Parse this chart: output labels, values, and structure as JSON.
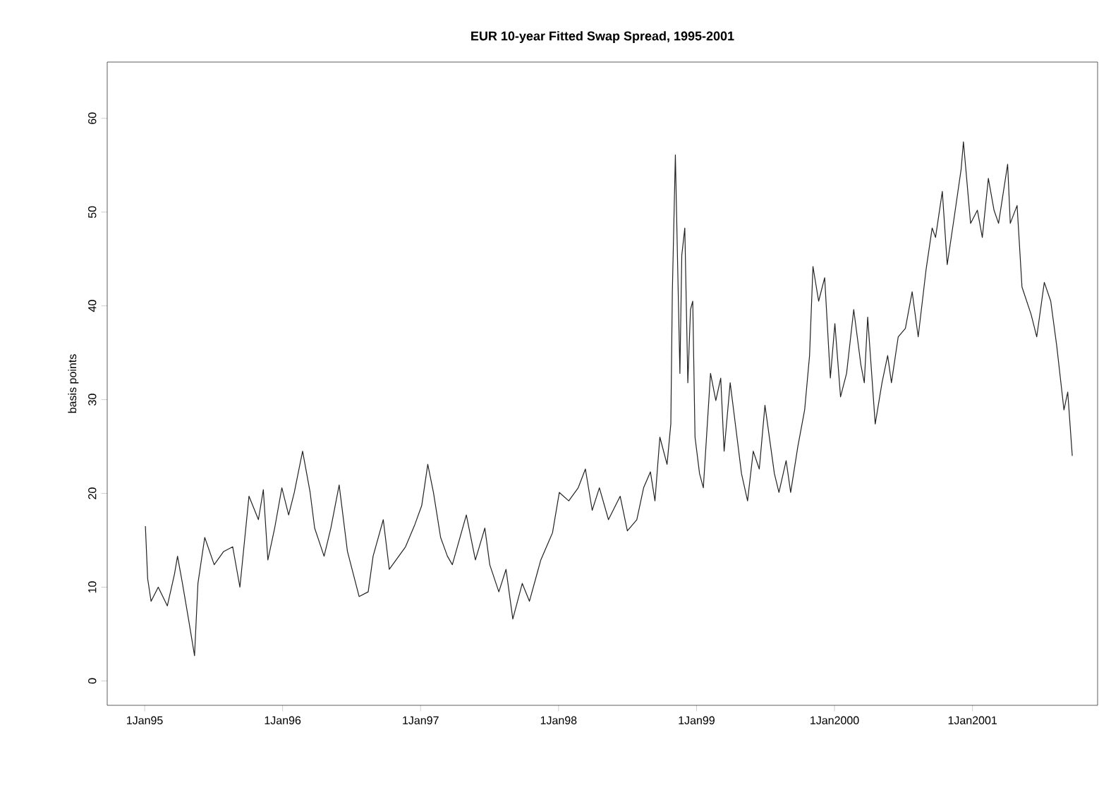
{
  "chart_data": {
    "type": "line",
    "title": "EUR 10-year Fitted Swap Spread, 1995-2001",
    "ylabel": "basis points",
    "xlim": [
      "1994-09-24",
      "2001-11-28"
    ],
    "ylim": [
      -2.6,
      66
    ],
    "xticks": [
      {
        "value": "1995-01-01",
        "label": "1Jan95"
      },
      {
        "value": "1996-01-01",
        "label": "1Jan96"
      },
      {
        "value": "1997-01-01",
        "label": "1Jan97"
      },
      {
        "value": "1998-01-01",
        "label": "1Jan98"
      },
      {
        "value": "1999-01-01",
        "label": "1Jan99"
      },
      {
        "value": "2000-01-01",
        "label": "1Jan2000"
      },
      {
        "value": "2001-01-01",
        "label": "1Jan2001"
      }
    ],
    "yticks": [
      0,
      10,
      20,
      30,
      40,
      50,
      60
    ],
    "grid": false,
    "series": [
      {
        "color": "#222222",
        "x": [
          "1995-01-03",
          "1995-01-09",
          "1995-01-18",
          "1995-02-06",
          "1995-03-02",
          "1995-03-21",
          "1995-03-29",
          "1995-04-11",
          "1995-04-27",
          "1995-05-13",
          "1995-05-22",
          "1995-06-09",
          "1995-07-04",
          "1995-07-29",
          "1995-08-22",
          "1995-09-10",
          "1995-10-04",
          "1995-10-29",
          "1995-11-11",
          "1995-11-23",
          "1995-12-11",
          "1995-12-30",
          "1996-01-17",
          "1996-02-01",
          "1996-02-23",
          "1996-03-14",
          "1996-03-26",
          "1996-04-20",
          "1996-05-08",
          "1996-05-30",
          "1996-06-21",
          "1996-07-22",
          "1996-08-15",
          "1996-08-28",
          "1996-09-24",
          "1996-10-10",
          "1996-10-28",
          "1996-11-22",
          "1996-12-17",
          "1997-01-04",
          "1997-01-20",
          "1997-02-04",
          "1997-02-23",
          "1997-03-13",
          "1997-03-26",
          "1997-05-02",
          "1997-05-26",
          "1997-06-20",
          "1997-07-03",
          "1997-07-27",
          "1997-08-15",
          "1997-09-02",
          "1997-09-27",
          "1997-10-16",
          "1997-11-15",
          "1997-12-16",
          "1998-01-03",
          "1998-01-28",
          "1998-02-22",
          "1998-03-13",
          "1998-03-31",
          "1998-04-19",
          "1998-05-13",
          "1998-06-13",
          "1998-07-02",
          "1998-07-27",
          "1998-08-14",
          "1998-09-01",
          "1998-09-13",
          "1998-09-26",
          "1998-10-15",
          "1998-10-25",
          "1998-10-29",
          "1998-11-06",
          "1998-11-12",
          "1998-11-18",
          "1998-11-23",
          "1998-12-01",
          "1998-12-09",
          "1998-12-16",
          "1998-12-22",
          "1998-12-28",
          "1999-01-09",
          "1999-01-19",
          "1999-02-07",
          "1999-02-21",
          "1999-03-06",
          "1999-03-15",
          "1999-03-31",
          "1999-04-18",
          "1999-04-30",
          "1999-05-16",
          "1999-05-31",
          "1999-06-16",
          "1999-07-01",
          "1999-07-26",
          "1999-08-07",
          "1999-08-26",
          "1999-09-07",
          "1999-09-26",
          "1999-10-14",
          "1999-10-27",
          "1999-11-05",
          "1999-11-20",
          "1999-12-06",
          "1999-12-21",
          "2000-01-02",
          "2000-01-17",
          "2000-02-02",
          "2000-02-21",
          "2000-03-11",
          "2000-03-20",
          "2000-03-29",
          "2000-04-18",
          "2000-05-06",
          "2000-05-21",
          "2000-05-31",
          "2000-06-18",
          "2000-07-07",
          "2000-07-25",
          "2000-08-10",
          "2000-08-31",
          "2000-09-16",
          "2000-09-25",
          "2000-10-13",
          "2000-10-26",
          "2000-11-13",
          "2000-12-02",
          "2000-12-08",
          "2000-12-27",
          "2001-01-14",
          "2001-01-27",
          "2001-02-12",
          "2001-02-27",
          "2001-03-11",
          "2001-04-04",
          "2001-04-11",
          "2001-04-29",
          "2001-05-12",
          "2001-06-05",
          "2001-06-20",
          "2001-07-10",
          "2001-07-27",
          "2001-08-12",
          "2001-08-31",
          "2001-09-10",
          "2001-09-22"
        ],
        "values": [
          16.5,
          10.9,
          8.5,
          10,
          8,
          11.4,
          13.3,
          10.4,
          6.6,
          2.7,
          10.4,
          15.3,
          12.4,
          13.8,
          14.3,
          10,
          19.7,
          17.2,
          20.4,
          12.9,
          16.3,
          20.6,
          17.7,
          20.1,
          24.5,
          20.1,
          16.3,
          13.3,
          16.3,
          20.9,
          13.8,
          9,
          9.5,
          13.3,
          17.2,
          11.9,
          12.9,
          14.3,
          16.7,
          18.7,
          23.1,
          20.1,
          15.3,
          13.3,
          12.4,
          17.7,
          12.9,
          16.3,
          12.4,
          9.5,
          11.9,
          6.6,
          10.4,
          8.5,
          12.9,
          15.8,
          20.1,
          19.2,
          20.6,
          22.6,
          18.2,
          20.6,
          17.2,
          19.7,
          16,
          17.2,
          20.6,
          22.3,
          19.2,
          26,
          23.1,
          27.4,
          41.5,
          56.1,
          44.4,
          32.8,
          45.4,
          48.3,
          31.8,
          39.6,
          40.5,
          26,
          22.1,
          20.6,
          32.8,
          29.9,
          32.3,
          24.5,
          31.8,
          26,
          22.1,
          19.2,
          24.5,
          22.6,
          29.4,
          22.1,
          20.1,
          23.5,
          20.1,
          25,
          28.9,
          34.7,
          44.2,
          40.5,
          43,
          32.3,
          38.1,
          30.3,
          32.8,
          39.6,
          33.7,
          31.8,
          38.8,
          27.4,
          31.8,
          34.7,
          31.8,
          36.7,
          37.6,
          41.5,
          36.7,
          43.9,
          48.3,
          47.3,
          52.2,
          44.4,
          49.3,
          54.6,
          57.5,
          48.8,
          50.2,
          47.3,
          53.6,
          50.2,
          48.8,
          55.1,
          48.8,
          50.7,
          42,
          39.1,
          36.7,
          42.5,
          40.5,
          35.7,
          28.9,
          30.8,
          24
        ]
      }
    ]
  }
}
